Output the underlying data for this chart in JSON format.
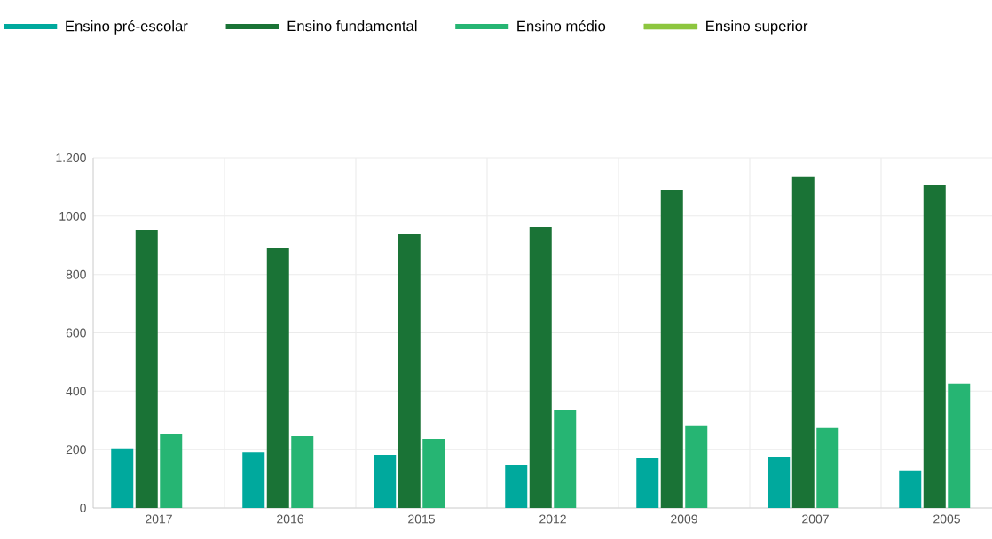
{
  "chart_data": {
    "type": "bar",
    "categories": [
      "2017",
      "2016",
      "2015",
      "2012",
      "2009",
      "2007",
      "2005"
    ],
    "series": [
      {
        "name": "Ensino pré-escolar",
        "color": "#00a99d",
        "values": [
          204,
          191,
          182,
          149,
          170,
          176,
          128
        ]
      },
      {
        "name": "Ensino fundamental",
        "color": "#1a7336",
        "values": [
          951,
          890,
          939,
          963,
          1091,
          1134,
          1106
        ]
      },
      {
        "name": "Ensino médio",
        "color": "#26b573",
        "values": [
          252,
          246,
          237,
          337,
          283,
          274,
          426
        ]
      },
      {
        "name": "Ensino superior",
        "color": "#8dc63f",
        "values": [
          null,
          null,
          null,
          null,
          null,
          null,
          null
        ]
      }
    ],
    "ylim": [
      0,
      1200
    ],
    "yticks": [
      0,
      200,
      400,
      600,
      800,
      1000,
      {
        "value": 1200,
        "label": "1.200"
      }
    ],
    "grid": true,
    "legend": "top left"
  }
}
